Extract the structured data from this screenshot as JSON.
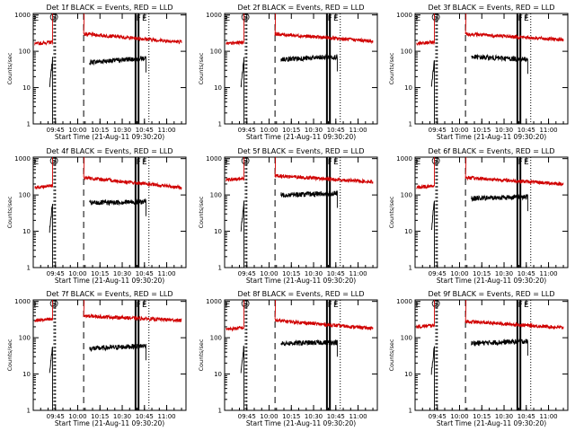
{
  "figure": {
    "x_axis_label": "Start Time (21-Aug-11 09:30:20)",
    "y_axis_label": "Counts/sec"
  },
  "chart_data": [
    {
      "type": "line",
      "title": "Det 1f BLACK = Events, RED = LLD",
      "xlabel": "Start Time (21-Aug-11 09:30:20)",
      "ylabel": "Counts/sec",
      "ylim": [
        1,
        1100
      ],
      "y_scale": "log",
      "x_ticks": [
        "09:45",
        "10:00",
        "10:15",
        "10:30",
        "10:45",
        "11:00"
      ],
      "y_ticks": [
        "1",
        "10",
        "100",
        "1000"
      ],
      "markers": [
        {
          "label": "E",
          "time": "09:32"
        },
        {
          "label": "S",
          "time": "09:44"
        },
        {
          "label": "F",
          "time": "10:41"
        },
        {
          "label": "E",
          "time": "10:45"
        }
      ],
      "series": [
        {
          "name": "Events",
          "color": "#000000",
          "segments": [
            {
              "x": [
                "09:41",
                "09:43"
              ],
              "y": [
                10,
                60
              ]
            },
            {
              "x": [
                "10:08",
                "10:46"
              ],
              "y": [
                50,
                65
              ]
            }
          ]
        },
        {
          "name": "LLD",
          "color": "#d00000",
          "segments": [
            {
              "x": [
                "09:31",
                "09:43"
              ],
              "y": [
                160,
                180
              ]
            },
            {
              "x": [
                "10:04",
                "11:10"
              ],
              "y": [
                300,
                180
              ]
            }
          ]
        }
      ]
    },
    {
      "type": "line",
      "title": "Det 2f BLACK = Events, RED = LLD",
      "xlabel": "Start Time (21-Aug-11 09:30:20)",
      "ylabel": "Counts/sec",
      "ylim": [
        1,
        1100
      ],
      "y_scale": "log",
      "x_ticks": [
        "09:45",
        "10:00",
        "10:15",
        "10:30",
        "10:45",
        "11:00"
      ],
      "y_ticks": [
        "1",
        "10",
        "100",
        "1000"
      ],
      "markers": [
        {
          "label": "E",
          "time": "09:32"
        },
        {
          "label": "S",
          "time": "09:44"
        },
        {
          "label": "F",
          "time": "10:41"
        },
        {
          "label": "E",
          "time": "10:45"
        }
      ],
      "series": [
        {
          "name": "Events",
          "color": "#000000",
          "segments": [
            {
              "x": [
                "09:41",
                "09:43"
              ],
              "y": [
                10,
                60
              ]
            },
            {
              "x": [
                "10:08",
                "10:46"
              ],
              "y": [
                60,
                70
              ]
            }
          ]
        },
        {
          "name": "LLD",
          "color": "#d00000",
          "segments": [
            {
              "x": [
                "09:31",
                "09:43"
              ],
              "y": [
                160,
                180
              ]
            },
            {
              "x": [
                "10:04",
                "11:10"
              ],
              "y": [
                300,
                190
              ]
            }
          ]
        }
      ]
    },
    {
      "type": "line",
      "title": "Det 3f BLACK = Events, RED = LLD",
      "xlabel": "Start Time (21-Aug-11 09:30:20)",
      "ylabel": "Counts/sec",
      "ylim": [
        1,
        1100
      ],
      "y_scale": "log",
      "x_ticks": [
        "09:45",
        "10:00",
        "10:15",
        "10:30",
        "10:45",
        "11:00"
      ],
      "y_ticks": [
        "1",
        "10",
        "100",
        "1000"
      ],
      "markers": [
        {
          "label": "E",
          "time": "09:32"
        },
        {
          "label": "S",
          "time": "09:44"
        },
        {
          "label": "F",
          "time": "10:41"
        },
        {
          "label": "E",
          "time": "10:45"
        }
      ],
      "series": [
        {
          "name": "Events",
          "color": "#000000",
          "segments": [
            {
              "x": [
                "09:41",
                "09:43"
              ],
              "y": [
                10,
                60
              ]
            },
            {
              "x": [
                "10:08",
                "10:46"
              ],
              "y": [
                70,
                60
              ]
            }
          ]
        },
        {
          "name": "LLD",
          "color": "#d00000",
          "segments": [
            {
              "x": [
                "09:31",
                "09:43"
              ],
              "y": [
                160,
                180
              ]
            },
            {
              "x": [
                "10:04",
                "11:10"
              ],
              "y": [
                300,
                210
              ]
            }
          ]
        }
      ]
    },
    {
      "type": "line",
      "title": "Det 4f BLACK = Events, RED = LLD",
      "xlabel": "Start Time (21-Aug-11 09:30:20)",
      "ylabel": "Counts/sec",
      "ylim": [
        1,
        1100
      ],
      "y_scale": "log",
      "x_ticks": [
        "09:45",
        "10:00",
        "10:15",
        "10:30",
        "10:45",
        "11:00"
      ],
      "y_ticks": [
        "1",
        "10",
        "100",
        "1000"
      ],
      "markers": [
        {
          "label": "E",
          "time": "09:32"
        },
        {
          "label": "S",
          "time": "09:44"
        },
        {
          "label": "F",
          "time": "10:41"
        },
        {
          "label": "E",
          "time": "10:45"
        }
      ],
      "series": [
        {
          "name": "Events",
          "color": "#000000",
          "segments": [
            {
              "x": [
                "09:41",
                "09:43"
              ],
              "y": [
                10,
                60
              ]
            },
            {
              "x": [
                "10:08",
                "10:46"
              ],
              "y": [
                60,
                65
              ]
            }
          ]
        },
        {
          "name": "LLD",
          "color": "#d00000",
          "segments": [
            {
              "x": [
                "09:31",
                "09:43"
              ],
              "y": [
                160,
                180
              ]
            },
            {
              "x": [
                "10:04",
                "11:10"
              ],
              "y": [
                300,
                160
              ]
            }
          ]
        }
      ]
    },
    {
      "type": "line",
      "title": "Det 5f BLACK = Events, RED = LLD",
      "xlabel": "Start Time (21-Aug-11 09:30:20)",
      "ylabel": "Counts/sec",
      "ylim": [
        1,
        1100
      ],
      "y_scale": "log",
      "x_ticks": [
        "09:45",
        "10:00",
        "10:15",
        "10:30",
        "10:45",
        "11:00"
      ],
      "y_ticks": [
        "1",
        "10",
        "100",
        "1000"
      ],
      "markers": [
        {
          "label": "E",
          "time": "09:32"
        },
        {
          "label": "S",
          "time": "09:44"
        },
        {
          "label": "F",
          "time": "10:41"
        },
        {
          "label": "E",
          "time": "10:45"
        }
      ],
      "series": [
        {
          "name": "Events",
          "color": "#000000",
          "segments": [
            {
              "x": [
                "09:41",
                "09:43"
              ],
              "y": [
                10,
                60
              ]
            },
            {
              "x": [
                "10:08",
                "10:46"
              ],
              "y": [
                100,
                110
              ]
            }
          ]
        },
        {
          "name": "LLD",
          "color": "#d00000",
          "segments": [
            {
              "x": [
                "09:31",
                "09:43"
              ],
              "y": [
                260,
                280
              ]
            },
            {
              "x": [
                "10:04",
                "11:10"
              ],
              "y": [
                340,
                230
              ]
            }
          ]
        }
      ]
    },
    {
      "type": "line",
      "title": "Det 6f BLACK = Events, RED = LLD",
      "xlabel": "Start Time (21-Aug-11 09:30:20)",
      "ylabel": "Counts/sec",
      "ylim": [
        1,
        1100
      ],
      "y_scale": "log",
      "x_ticks": [
        "09:45",
        "10:00",
        "10:15",
        "10:30",
        "10:45",
        "11:00"
      ],
      "y_ticks": [
        "1",
        "10",
        "100",
        "1000"
      ],
      "markers": [
        {
          "label": "E",
          "time": "09:32"
        },
        {
          "label": "S",
          "time": "09:44"
        },
        {
          "label": "F",
          "time": "10:41"
        },
        {
          "label": "E",
          "time": "10:45"
        }
      ],
      "series": [
        {
          "name": "Events",
          "color": "#000000",
          "segments": [
            {
              "x": [
                "09:41",
                "09:43"
              ],
              "y": [
                10,
                80
              ]
            },
            {
              "x": [
                "10:08",
                "10:46"
              ],
              "y": [
                80,
                90
              ]
            }
          ]
        },
        {
          "name": "LLD",
          "color": "#d00000",
          "segments": [
            {
              "x": [
                "09:31",
                "09:43"
              ],
              "y": [
                160,
                180
              ]
            },
            {
              "x": [
                "10:04",
                "11:10"
              ],
              "y": [
                300,
                200
              ]
            }
          ]
        }
      ]
    },
    {
      "type": "line",
      "title": "Det 7f BLACK = Events, RED = LLD",
      "xlabel": "Start Time (21-Aug-11 09:30:20)",
      "ylabel": "Counts/sec",
      "ylim": [
        1,
        1100
      ],
      "y_scale": "log",
      "x_ticks": [
        "09:45",
        "10:00",
        "10:15",
        "10:30",
        "10:45",
        "11:00"
      ],
      "y_ticks": [
        "1",
        "10",
        "100",
        "1000"
      ],
      "markers": [
        {
          "label": "E",
          "time": "09:32"
        },
        {
          "label": "S",
          "time": "09:44"
        },
        {
          "label": "F",
          "time": "10:41"
        },
        {
          "label": "E",
          "time": "10:45"
        }
      ],
      "series": [
        {
          "name": "Events",
          "color": "#000000",
          "segments": [
            {
              "x": [
                "09:41",
                "09:43"
              ],
              "y": [
                10,
                60
              ]
            },
            {
              "x": [
                "10:08",
                "10:46"
              ],
              "y": [
                50,
                60
              ]
            }
          ]
        },
        {
          "name": "LLD",
          "color": "#d00000",
          "segments": [
            {
              "x": [
                "09:31",
                "09:43"
              ],
              "y": [
                300,
                320
              ]
            },
            {
              "x": [
                "10:04",
                "11:10"
              ],
              "y": [
                400,
                300
              ]
            }
          ]
        }
      ]
    },
    {
      "type": "line",
      "title": "Det 8f BLACK = Events, RED = LLD",
      "xlabel": "Start Time (21-Aug-11 09:30:20)",
      "ylabel": "Counts/sec",
      "ylim": [
        1,
        1100
      ],
      "y_scale": "log",
      "x_ticks": [
        "09:45",
        "10:00",
        "10:15",
        "10:30",
        "10:45",
        "11:00"
      ],
      "y_ticks": [
        "1",
        "10",
        "100",
        "1000"
      ],
      "markers": [
        {
          "label": "E",
          "time": "09:32"
        },
        {
          "label": "S",
          "time": "09:44"
        },
        {
          "label": "F",
          "time": "10:41"
        },
        {
          "label": "E",
          "time": "10:45"
        }
      ],
      "series": [
        {
          "name": "Events",
          "color": "#000000",
          "segments": [
            {
              "x": [
                "09:41",
                "09:43"
              ],
              "y": [
                10,
                60
              ]
            },
            {
              "x": [
                "10:08",
                "10:46"
              ],
              "y": [
                70,
                75
              ]
            }
          ]
        },
        {
          "name": "LLD",
          "color": "#d00000",
          "segments": [
            {
              "x": [
                "09:31",
                "09:43"
              ],
              "y": [
                170,
                190
              ]
            },
            {
              "x": [
                "10:04",
                "11:10"
              ],
              "y": [
                300,
                180
              ]
            }
          ]
        }
      ]
    },
    {
      "type": "line",
      "title": "Det 9f BLACK = Events, RED = LLD",
      "xlabel": "Start Time (21-Aug-11 09:30:20)",
      "ylabel": "Counts/sec",
      "ylim": [
        1,
        1100
      ],
      "y_scale": "log",
      "x_ticks": [
        "09:45",
        "10:00",
        "10:15",
        "10:30",
        "10:45",
        "11:00"
      ],
      "y_ticks": [
        "1",
        "10",
        "100",
        "1000"
      ],
      "markers": [
        {
          "label": "E",
          "time": "09:32"
        },
        {
          "label": "S",
          "time": "09:44"
        },
        {
          "label": "F",
          "time": "10:41"
        },
        {
          "label": "E",
          "time": "10:45"
        }
      ],
      "series": [
        {
          "name": "Events",
          "color": "#000000",
          "segments": [
            {
              "x": [
                "09:41",
                "09:43"
              ],
              "y": [
                10,
                60
              ]
            },
            {
              "x": [
                "10:08",
                "10:46"
              ],
              "y": [
                70,
                80
              ]
            }
          ]
        },
        {
          "name": "LLD",
          "color": "#d00000",
          "segments": [
            {
              "x": [
                "09:31",
                "09:43"
              ],
              "y": [
                200,
                220
              ]
            },
            {
              "x": [
                "10:04",
                "11:10"
              ],
              "y": [
                280,
                190
              ]
            }
          ]
        }
      ]
    }
  ]
}
